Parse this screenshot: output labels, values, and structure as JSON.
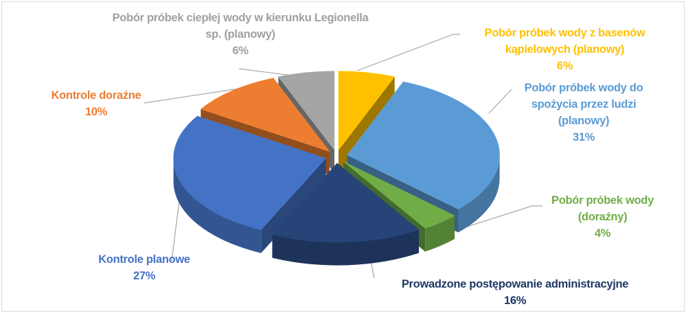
{
  "chart_data": {
    "type": "pie3d",
    "categories": [
      "Pobór próbek wody z basenów kąpielowych (planowy)",
      "Pobór próbek wody do spożycia przez ludzi (planowy)",
      "Pobór próbek wody (doraźny)",
      "Prowadzone postępowanie administracyjne",
      "Kontrole planowe",
      "Kontrole doraźne",
      "Pobór próbek ciepłej wody w kierunku Legionella sp. (planowy)"
    ],
    "values": [
      6,
      31,
      4,
      16,
      27,
      10,
      6
    ],
    "value_labels": [
      "6%",
      "31%",
      "4%",
      "16%",
      "27%",
      "10%",
      "6%"
    ],
    "colors": [
      "#ffc000",
      "#5b9bd5",
      "#70ad47",
      "#264478",
      "#4472c4",
      "#ed7d31",
      "#a5a5a5"
    ]
  }
}
